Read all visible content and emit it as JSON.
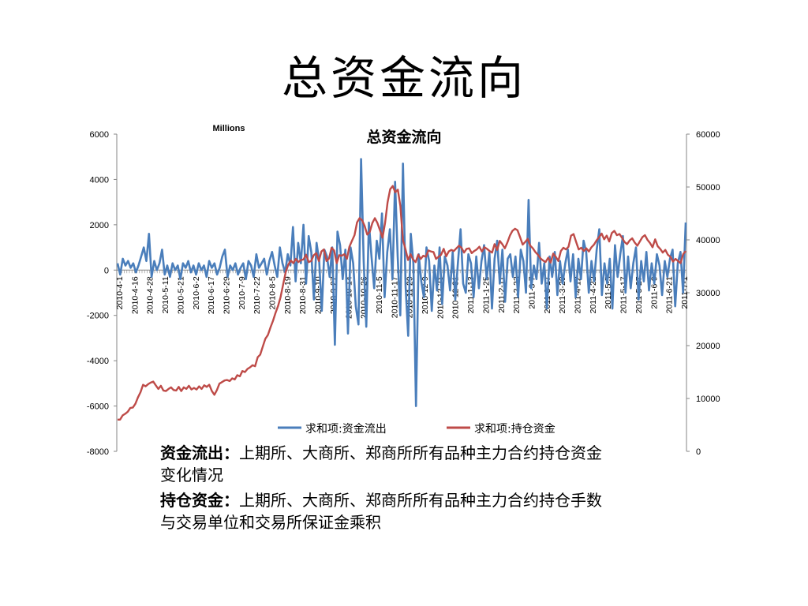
{
  "slide": {
    "title": "总资金流向"
  },
  "chart_data": {
    "type": "line",
    "title": "总资金流向",
    "unit_label": "Millions",
    "y_left": {
      "range": [
        -8000,
        6000
      ],
      "ticks": [
        "6000",
        "4000",
        "2000",
        "0",
        "-2000",
        "-4000",
        "-6000",
        "-8000"
      ]
    },
    "y_right": {
      "range": [
        0,
        60000
      ],
      "ticks": [
        "60000",
        "50000",
        "40000",
        "30000",
        "20000",
        "10000",
        "0"
      ]
    },
    "x_tick_labels": [
      "2010-4-1",
      "2010-4-16",
      "2010-4-28",
      "2010-5-11",
      "2010-5-21",
      "2010-6-2",
      "2010-6-17",
      "2010-6-29",
      "2010-7-9",
      "2010-7-22",
      "2010-8-5",
      "2010-8-19",
      "2010-8-31",
      "2010-9-10",
      "2010-9-27",
      "2010-10-14",
      "2010-10-26",
      "2010-11-5",
      "2010-11-17",
      "2010-11-29",
      "2010-12-9",
      "2010-12-21",
      "2010-12-31",
      "2011-1-13",
      "2011-1-25",
      "2011-2-11",
      "2011-2-23",
      "2011-3-7",
      "2011-3-17",
      "2011-3-29",
      "2011-4-12",
      "2011-4-22",
      "2011-5-5",
      "2011-5-17",
      "2011-5-27",
      "2011-6-9",
      "2011-6-21",
      "2011-7-1"
    ],
    "grid": false,
    "legend_position": "bottom",
    "series": [
      {
        "name": "求和项:资金流出",
        "axis": "left",
        "color": "#4a7ebb",
        "values": [
          300,
          -200,
          500,
          200,
          400,
          100,
          300,
          -100,
          200,
          600,
          1000,
          400,
          1600,
          -300,
          400,
          0,
          300,
          900,
          -200,
          200,
          -300,
          300,
          0,
          200,
          -400,
          300,
          100,
          400,
          -100,
          200,
          -200,
          300,
          0,
          200,
          -300,
          400,
          100,
          300,
          -200,
          100,
          600,
          900,
          -300,
          200,
          0,
          300,
          -200,
          100,
          300,
          -400,
          400,
          200,
          -300,
          700,
          100,
          300,
          500,
          -200,
          400,
          800,
          200,
          -300,
          1000,
          300,
          -100,
          700,
          200,
          1900,
          -500,
          1200,
          300,
          2000,
          -600,
          1500,
          800,
          -1300,
          1200,
          400,
          -1800,
          900,
          600,
          -300,
          1000,
          -3300,
          1700,
          1100,
          -400,
          900,
          -2800,
          1000,
          300,
          -1600,
          -2400,
          4900,
          400,
          -2500,
          2100,
          600,
          -800,
          1300,
          500,
          2500,
          -1200,
          800,
          1800,
          -400,
          3900,
          600,
          -2000,
          4700,
          -700,
          -2900,
          1600,
          300,
          -6000,
          700,
          -500,
          -1200,
          1000,
          400,
          -1800,
          200,
          -900,
          1000,
          -1500,
          600,
          200,
          -900,
          800,
          -1300,
          300,
          1800,
          -600,
          -1000,
          700,
          300,
          -1200,
          600,
          -800,
          400,
          1100,
          -400,
          800,
          -1700,
          500,
          1300,
          -600,
          900,
          -1400,
          500,
          700,
          -300,
          600,
          -1200,
          900,
          400,
          -1000,
          3100,
          -800,
          200,
          -400,
          1200,
          -600,
          300,
          -1700,
          600,
          -300,
          800,
          -1100,
          400,
          -600,
          300,
          900,
          -500,
          700,
          -1200,
          500,
          -400,
          1300,
          800,
          -1000,
          400,
          -500,
          900,
          1800,
          -1100,
          300,
          -600,
          500,
          -1700,
          1100,
          -300,
          700,
          1500,
          -1000,
          600,
          -800,
          300,
          1000,
          -1300,
          400,
          -500,
          800,
          -900,
          300,
          -600,
          700,
          200,
          -1100,
          400,
          -300,
          500,
          900,
          -1600,
          300,
          800,
          -1000,
          2100
        ]
      },
      {
        "name": "求和项:持仓资金",
        "axis": "right",
        "color": "#be4b48",
        "values": [
          6000,
          6000,
          6800,
          7100,
          7500,
          8200,
          8300,
          9000,
          10200,
          11200,
          12600,
          12300,
          12700,
          13000,
          13200,
          12500,
          11800,
          12400,
          11500,
          11400,
          11800,
          12100,
          11600,
          11500,
          12200,
          11400,
          12100,
          11800,
          12400,
          11700,
          12000,
          11700,
          12300,
          11800,
          12500,
          12200,
          12600,
          11400,
          10700,
          11600,
          12800,
          13100,
          13400,
          13500,
          13300,
          13800,
          13600,
          14400,
          14200,
          15200,
          15000,
          15600,
          15900,
          16300,
          16100,
          17800,
          18300,
          19800,
          21300,
          22000,
          23400,
          24700,
          26200,
          27500,
          29200,
          31600,
          33900,
          35300,
          36100,
          35600,
          36400,
          35800,
          36200,
          36300,
          37200,
          35800,
          36000,
          37100,
          37500,
          36000,
          37800,
          38200,
          36000,
          36500,
          38500,
          38000,
          35600,
          37100,
          37000,
          37300,
          36400,
          38700,
          39800,
          40900,
          43300,
          44100,
          43700,
          42600,
          41000,
          41500,
          43200,
          44100,
          43200,
          41800,
          40400,
          43200,
          47100,
          49600,
          50200,
          49000,
          49500,
          46400,
          40000,
          38300,
          36200,
          37300,
          36300,
          35800,
          37200,
          36400,
          37000,
          36800,
          38000,
          37800,
          37700,
          36400,
          36800,
          37200,
          38300,
          36900,
          37800,
          38100,
          37900,
          38400,
          38900,
          38500,
          37600,
          38300,
          38400,
          37500,
          37900,
          38200,
          38700,
          37800,
          38600,
          38300,
          37900,
          37600,
          39200,
          38100,
          39800,
          39200,
          38400,
          39500,
          40800,
          41700,
          42100,
          41800,
          40500,
          39100,
          39600,
          40200,
          38900,
          38400,
          37700,
          37200,
          36500,
          36100,
          35800,
          36600,
          35700,
          37400,
          36800,
          36000,
          37900,
          38500,
          38200,
          38700,
          40800,
          41100,
          39600,
          38200,
          38500,
          37900,
          38400,
          37800,
          38600,
          39100,
          39900,
          40500,
          41200,
          40100,
          40800,
          39700,
          41300,
          41700,
          40900,
          41100,
          40400,
          39600,
          39200,
          39900,
          40300,
          39500,
          38900,
          39700,
          40500,
          40900,
          40000,
          39400,
          38600,
          40100,
          38800,
          38300,
          37600,
          38100,
          37200,
          36800,
          35900,
          36400,
          36000,
          35600,
          37300,
          37900
        ]
      }
    ]
  },
  "notes": [
    {
      "term": "资金流出：",
      "desc": "上期所、大商所、郑商所所有品种主力合约持仓资金变化情况"
    },
    {
      "term": "持仓资金：",
      "desc": "上期所、大商所、郑商所所有品种主力合约持仓手数与交易单位和交易所保证金乘积"
    }
  ]
}
